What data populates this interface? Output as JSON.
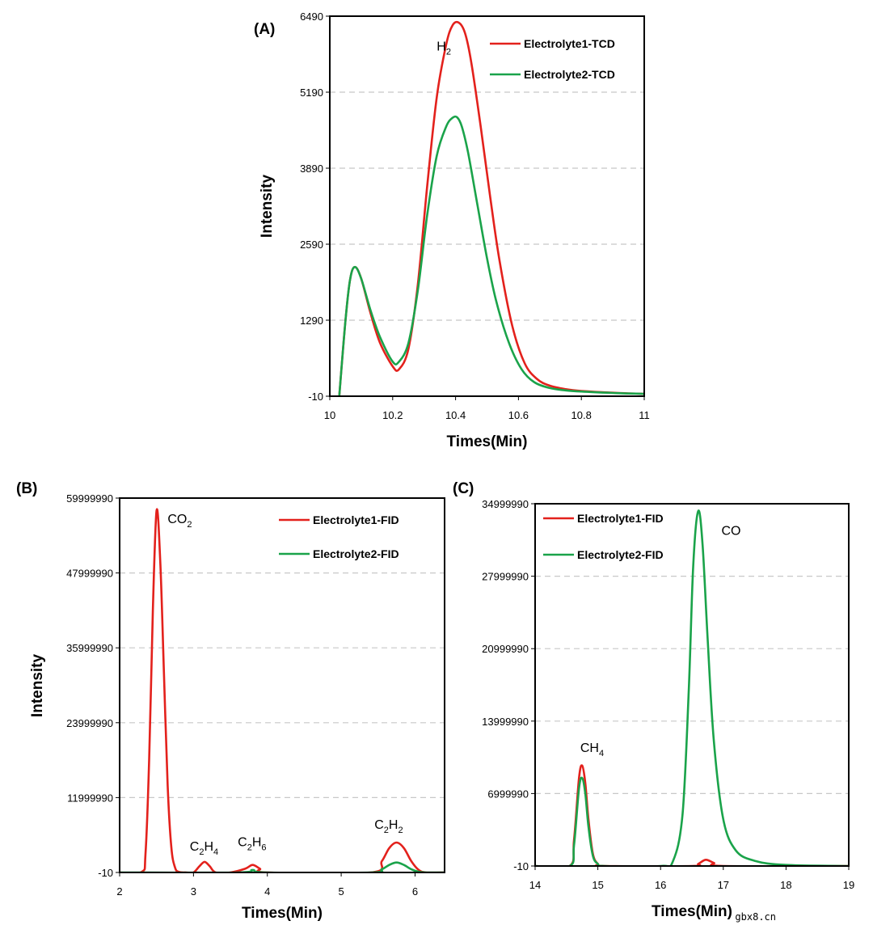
{
  "chart_data": [
    {
      "panel": "(A)",
      "type": "line",
      "xlabel": "Times(Min)",
      "ylabel": "Intensity",
      "xlim": [
        10,
        11
      ],
      "ylim": [
        -10,
        6490
      ],
      "x_ticks": [
        "10",
        "10.2",
        "10.4",
        "10.6",
        "10.8",
        "11"
      ],
      "y_ticks": [
        "-10",
        "1290",
        "2590",
        "3890",
        "5190",
        "6490"
      ],
      "grid": "horizontal dashed",
      "legend": "top-right",
      "annotations": [
        {
          "base": "H",
          "sub": "2",
          "x": 10.34,
          "y": 5900
        }
      ],
      "series": [
        {
          "name": "Electrolyte1-TCD",
          "color": "#e3211c",
          "x": [
            10.03,
            10.05,
            10.065,
            10.08,
            10.1,
            10.13,
            10.16,
            10.2,
            10.22,
            10.25,
            10.28,
            10.31,
            10.34,
            10.37,
            10.39,
            10.41,
            10.43,
            10.45,
            10.48,
            10.51,
            10.54,
            10.58,
            10.62,
            10.66,
            10.7,
            10.75,
            10.8,
            10.9,
            11.0
          ],
          "y": [
            -10,
            1300,
            2000,
            2200,
            2000,
            1400,
            900,
            500,
            450,
            800,
            1900,
            3600,
            5100,
            6000,
            6330,
            6380,
            6200,
            5700,
            4600,
            3400,
            2300,
            1200,
            550,
            280,
            170,
            110,
            80,
            50,
            30
          ]
        },
        {
          "name": "Electrolyte2-TCD",
          "color": "#1aa34a",
          "x": [
            10.03,
            10.05,
            10.065,
            10.08,
            10.1,
            10.13,
            10.16,
            10.2,
            10.22,
            10.25,
            10.28,
            10.31,
            10.34,
            10.37,
            10.39,
            10.405,
            10.42,
            10.44,
            10.47,
            10.5,
            10.53,
            10.57,
            10.61,
            10.65,
            10.7,
            10.75,
            10.8,
            10.9,
            11.0
          ],
          "y": [
            -10,
            1300,
            2000,
            2200,
            2000,
            1450,
            1000,
            580,
            580,
            900,
            1800,
            3100,
            4100,
            4600,
            4750,
            4760,
            4600,
            4150,
            3250,
            2350,
            1600,
            900,
            450,
            230,
            130,
            90,
            70,
            45,
            30
          ]
        }
      ]
    },
    {
      "panel": "(B)",
      "type": "line",
      "xlabel": "Times(Min)",
      "ylabel": "Intensity",
      "xlim": [
        2,
        6.4
      ],
      "ylim": [
        -10,
        59999990
      ],
      "x_ticks": [
        "2",
        "3",
        "4",
        "5",
        "6"
      ],
      "y_ticks": [
        "-10",
        "11999990",
        "23999990",
        "35999990",
        "47999990",
        "59999990"
      ],
      "grid": "horizontal dashed",
      "legend": "top-right",
      "annotations": [
        {
          "base": "CO",
          "sub": "2",
          "x": 2.65,
          "y": 56000000
        },
        {
          "base": "C",
          "sub": "2",
          "base2": "H",
          "sub2": "4",
          "x": 2.95,
          "y": 3500000
        },
        {
          "base": "C",
          "sub": "2",
          "base2": "H",
          "sub2": "6",
          "x": 3.6,
          "y": 4200000
        },
        {
          "base": "C",
          "sub": "2",
          "base2": "H",
          "sub2": "2",
          "x": 5.45,
          "y": 7000000
        }
      ],
      "series": [
        {
          "name": "Electrolyte1-FID",
          "color": "#e3211c",
          "x": [
            2.0,
            2.3,
            2.35,
            2.4,
            2.45,
            2.5,
            2.55,
            2.6,
            2.65,
            2.7,
            2.75,
            2.8,
            2.9,
            3.0,
            3.08,
            3.15,
            3.22,
            3.3,
            3.5,
            3.7,
            3.8,
            3.9,
            4.0,
            5.4,
            5.55,
            5.65,
            5.75,
            5.85,
            5.95,
            6.05,
            6.15,
            6.4
          ],
          "y": [
            -10,
            100000,
            3000000,
            18000000,
            42000000,
            58000000,
            50000000,
            32000000,
            14000000,
            4000000,
            800000,
            100000,
            -10,
            -10,
            1000000,
            1700000,
            1000000,
            -10,
            -10,
            600000,
            1200000,
            600000,
            -10,
            -10,
            1800000,
            3900000,
            4800000,
            3900000,
            1800000,
            400000,
            -10,
            -10
          ]
        },
        {
          "name": "Electrolyte2-FID",
          "color": "#1aa34a",
          "x": [
            2.0,
            3.6,
            3.8,
            4.0,
            5.4,
            5.55,
            5.65,
            5.75,
            5.85,
            5.95,
            6.05,
            6.15,
            6.4
          ],
          "y": [
            -10,
            -10,
            400000,
            -10,
            -10,
            500000,
            1200000,
            1600000,
            1200000,
            500000,
            100000,
            -10,
            -10
          ]
        }
      ]
    },
    {
      "panel": "(C)",
      "type": "line",
      "xlabel": "Times(Min)",
      "ylabel": "",
      "xlim": [
        14,
        19
      ],
      "ylim": [
        -10,
        34999990
      ],
      "x_ticks": [
        "14",
        "15",
        "16",
        "17",
        "18",
        "19"
      ],
      "y_ticks": [
        "-10",
        "6999990",
        "13999990",
        "20999990",
        "27999990",
        "34999990"
      ],
      "grid": "horizontal dashed",
      "legend": "top-left",
      "annotations": [
        {
          "base": "CO",
          "x": 16.97,
          "y": 32000000
        },
        {
          "base": "CH",
          "sub": "4",
          "x": 14.72,
          "y": 11000000
        }
      ],
      "series": [
        {
          "name": "Electrolyte1-FID",
          "color": "#e3211c",
          "x": [
            14.0,
            14.55,
            14.62,
            14.7,
            14.75,
            14.8,
            14.85,
            14.92,
            15.0,
            15.1,
            16.5,
            16.6,
            16.72,
            16.85,
            17.0,
            19.0
          ],
          "y": [
            -10,
            -10,
            2500000,
            8500000,
            9700000,
            8000000,
            4500000,
            1200000,
            200000,
            -10,
            -10,
            200000,
            600000,
            300000,
            -10,
            -10
          ]
        },
        {
          "name": "Electrolyte2-FID",
          "color": "#1aa34a",
          "x": [
            14.0,
            14.55,
            14.62,
            14.7,
            14.75,
            14.8,
            14.85,
            14.92,
            15.0,
            15.1,
            16.0,
            16.2,
            16.35,
            16.45,
            16.52,
            16.6,
            16.67,
            16.75,
            16.85,
            17.0,
            17.2,
            17.5,
            18.0,
            19.0
          ],
          "y": [
            -10,
            -10,
            2000000,
            7500000,
            8500000,
            7000000,
            3800000,
            1000000,
            200000,
            -10,
            -10,
            500000,
            5000000,
            17000000,
            29000000,
            34300000,
            31000000,
            22000000,
            12000000,
            4500000,
            1500000,
            500000,
            100000,
            -10
          ]
        }
      ]
    }
  ],
  "watermark": "gbx8.cn"
}
